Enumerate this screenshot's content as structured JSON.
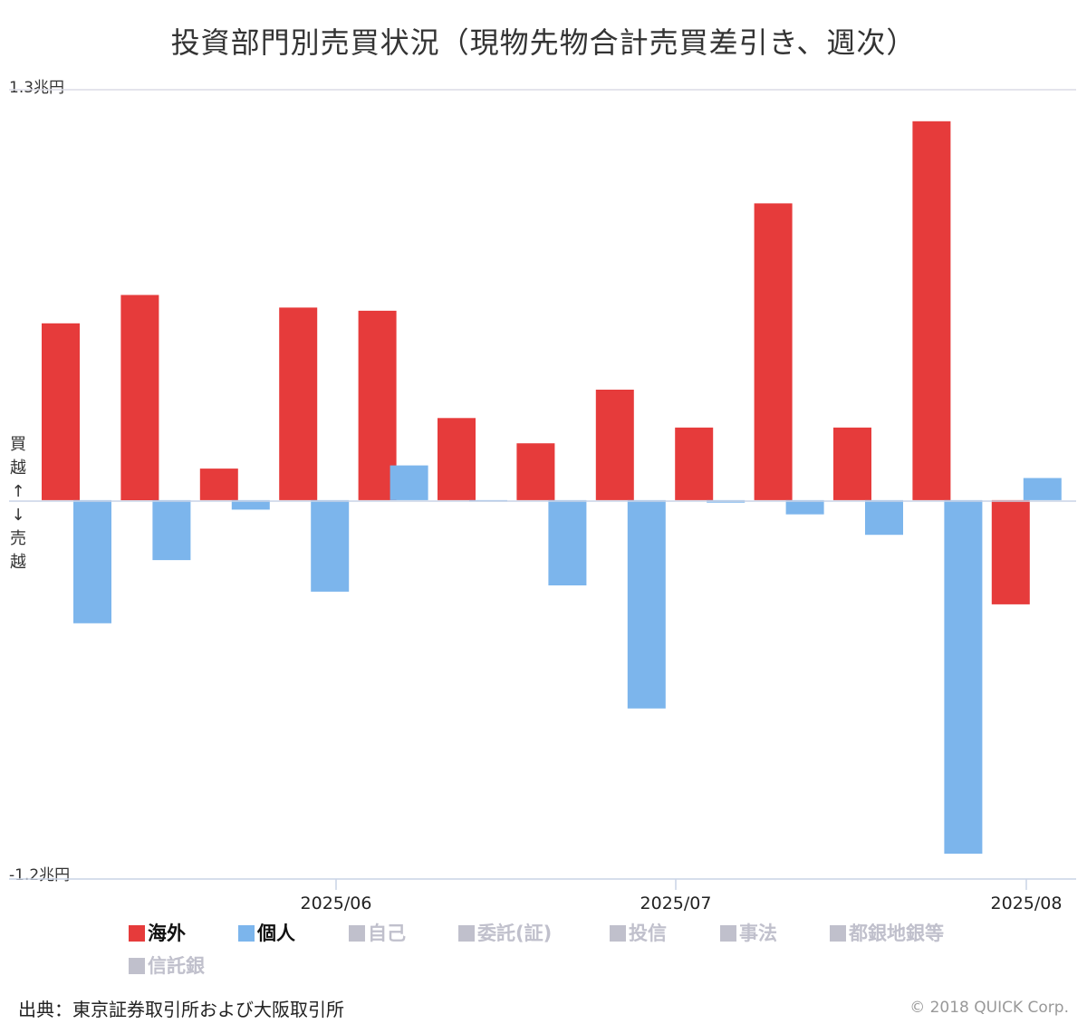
{
  "title": "投資部門別売買状況（現物先物合計売買差引き、週次）",
  "y_axis": {
    "top_label": "1.3兆円",
    "bottom_label": "-1.2兆円",
    "side_label": [
      "買",
      "越",
      "↑",
      "↓",
      "売",
      "越"
    ]
  },
  "x_ticks": [
    "2025/06",
    "2025/07",
    "2025/08"
  ],
  "legend": [
    {
      "label": "海外",
      "color": "#e63b3b",
      "active": true
    },
    {
      "label": "個人",
      "color": "#7cb5ec",
      "active": true
    },
    {
      "label": "自己",
      "color": "#c0c0cc",
      "active": false
    },
    {
      "label": "委託(証)",
      "color": "#c0c0cc",
      "active": false
    },
    {
      "label": "投信",
      "color": "#c0c0cc",
      "active": false
    },
    {
      "label": "事法",
      "color": "#c0c0cc",
      "active": false
    },
    {
      "label": "都銀地銀等",
      "color": "#c0c0cc",
      "active": false
    },
    {
      "label": "信託銀",
      "color": "#c0c0cc",
      "active": false
    }
  ],
  "source": "出典：東京証券取引所および大阪取引所",
  "copyright": "© 2018 QUICK Corp.",
  "chart_data": {
    "type": "bar",
    "unit": "兆円",
    "ylim": [
      -1.2,
      1.3
    ],
    "series": [
      {
        "name": "海外",
        "color": "#e63b3b",
        "values": [
          0.56,
          0.65,
          0.1,
          0.61,
          0.6,
          0.26,
          0.18,
          0.35,
          0.23,
          0.94,
          0.23,
          1.2,
          -0.33
        ]
      },
      {
        "name": "個人",
        "color": "#7cb5ec",
        "values": [
          -0.39,
          -0.19,
          -0.03,
          -0.29,
          0.11,
          -0.005,
          -0.27,
          -0.66,
          -0.008,
          -0.045,
          -0.11,
          -1.12,
          0.07
        ]
      }
    ]
  }
}
